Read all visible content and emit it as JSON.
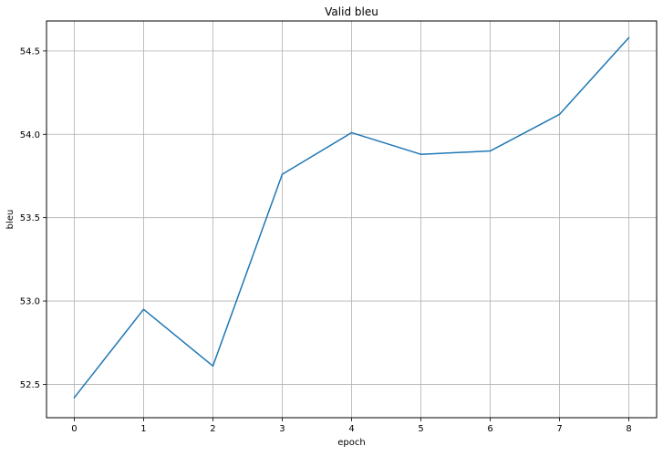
{
  "chart_data": {
    "type": "line",
    "title": "Valid bleu",
    "xlabel": "epoch",
    "ylabel": "bleu",
    "xlim": [
      -0.4,
      8.4
    ],
    "ylim": [
      52.3,
      54.68
    ],
    "xticks": [
      0,
      1,
      2,
      3,
      4,
      5,
      6,
      7,
      8
    ],
    "yticks": [
      52.5,
      53.0,
      53.5,
      54.0,
      54.5
    ],
    "ytick_labels": [
      "52.5",
      "53.0",
      "53.5",
      "54.0",
      "54.5"
    ],
    "grid": true,
    "series": [
      {
        "color": "#1f77b4",
        "x": [
          0,
          1,
          2,
          3,
          4,
          5,
          6,
          7,
          8
        ],
        "values": [
          52.42,
          52.95,
          52.61,
          53.76,
          54.01,
          53.88,
          53.9,
          54.12,
          54.58
        ]
      }
    ]
  }
}
